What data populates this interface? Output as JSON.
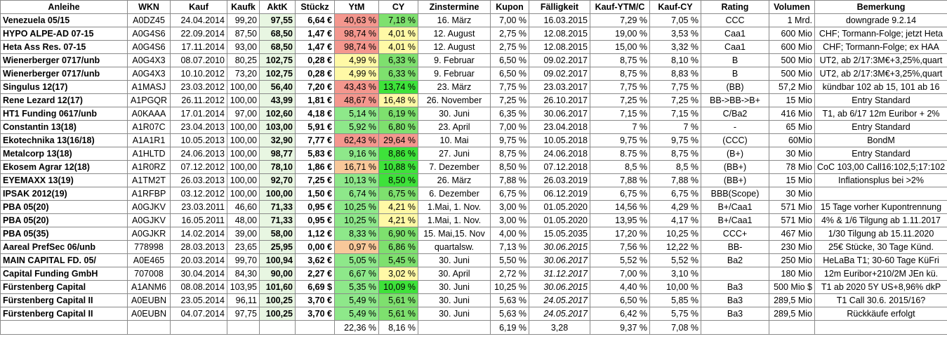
{
  "headers": [
    "Anleihe",
    "WKN",
    "Kauf",
    "Kaufk",
    "AktK",
    "Stückz",
    "YtM",
    "CY",
    "Zinstermine",
    "Kupon",
    "Fälligkeit",
    "Kauf-YTM/C",
    "Kauf-CY",
    "Rating",
    "Volumen",
    "Bemerkung"
  ],
  "colors": {
    "ytm_red": "#f4978e",
    "ytm_orange": "#f8c89a",
    "ytm_yellow": "#fff9a6",
    "ytm_green": "#8ee88a",
    "cy_red": "#f4978e",
    "cy_yellow": "#fff9a6",
    "cy_green": "#7ee06e",
    "cy_bright_green": "#3ee23a",
    "aktk_bg": "#e8f6e2"
  },
  "rows": [
    {
      "name": "Venezuela 05/15",
      "wkn": "A0DZ45",
      "kauf": "24.04.2014",
      "kaufk": "99,20",
      "aktk": "97,55",
      "stueckz": "6,64 €",
      "ytm": "40,63 %",
      "ytm_color": "#f4978e",
      "cy": "7,18 %",
      "cy_color": "#7ee06e",
      "zins": "16. März",
      "kupon": "7,00 %",
      "faellig": "16.03.2015",
      "faellig_italic": false,
      "kytm": "7,29 %",
      "kcy": "7,05 %",
      "rating": "CCC",
      "volumen": "1 Mrd.",
      "bemerkung": "downgrade 9.2.14"
    },
    {
      "name": "HYPO ALPE-AD 07-15",
      "wkn": "A0G4S6",
      "kauf": "22.09.2014",
      "kaufk": "87,50",
      "aktk": "68,50",
      "stueckz": "1,47 €",
      "ytm": "98,74 %",
      "ytm_color": "#f4978e",
      "cy": "4,01 %",
      "cy_color": "#fff9a6",
      "zins": "12. August",
      "kupon": "2,75 %",
      "faellig": "12.08.2015",
      "faellig_italic": false,
      "kytm": "19,00 %",
      "kcy": "3,53 %",
      "rating": "Caa1",
      "volumen": "600 Mio",
      "bemerkung": "CHF; Tormann-Folge; jetzt Heta"
    },
    {
      "name": "Heta Ass Res. 07-15",
      "wkn": "A0G4S6",
      "kauf": "17.11.2014",
      "kaufk": "93,00",
      "aktk": "68,50",
      "stueckz": "1,47 €",
      "ytm": "98,74 %",
      "ytm_color": "#f4978e",
      "cy": "4,01 %",
      "cy_color": "#fff9a6",
      "zins": "12. August",
      "kupon": "2,75 %",
      "faellig": "12.08.2015",
      "faellig_italic": false,
      "kytm": "15,00 %",
      "kcy": "3,32 %",
      "rating": "Caa1",
      "volumen": "600 Mio",
      "bemerkung": "CHF; Tormann-Folge; ex HAA"
    },
    {
      "name": "Wienerberger 0717/unb",
      "wkn": "A0G4X3",
      "kauf": "08.07.2010",
      "kaufk": "80,25",
      "aktk": "102,75",
      "stueckz": "0,28 €",
      "ytm": "4,99 %",
      "ytm_color": "#fff9a6",
      "cy": "6,33 %",
      "cy_color": "#7ee06e",
      "zins": "9. Februar",
      "kupon": "6,50 %",
      "faellig": "09.02.2017",
      "faellig_italic": false,
      "kytm": "8,75 %",
      "kcy": "8,10 %",
      "rating": "B",
      "volumen": "500 Mio",
      "bemerkung": "UT2, ab 2/17:3M€+3,25%,quart"
    },
    {
      "name": "Wienerberger 0717/unb",
      "wkn": "A0G4X3",
      "kauf": "10.10.2012",
      "kaufk": "73,20",
      "aktk": "102,75",
      "stueckz": "0,28 €",
      "ytm": "4,99 %",
      "ytm_color": "#fff9a6",
      "cy": "6,33 %",
      "cy_color": "#7ee06e",
      "zins": "9. Februar",
      "kupon": "6,50 %",
      "faellig": "09.02.2017",
      "faellig_italic": false,
      "kytm": "8,75 %",
      "kcy": "8,83 %",
      "rating": "B",
      "volumen": "500 Mio",
      "bemerkung": "UT2, ab 2/17:3M€+3,25%,quart"
    },
    {
      "name": "Singulus 12(17)",
      "wkn": "A1MASJ",
      "kauf": "23.03.2012",
      "kaufk": "100,00",
      "aktk": "56,40",
      "stueckz": "7,20 €",
      "ytm": "43,43 %",
      "ytm_color": "#f4978e",
      "cy": "13,74 %",
      "cy_color": "#3ee23a",
      "zins": "23. März",
      "kupon": "7,75 %",
      "faellig": "23.03.2017",
      "faellig_italic": false,
      "kytm": "7,75 %",
      "kcy": "7,75 %",
      "rating": "(BB)",
      "volumen": "57,2 Mio",
      "bemerkung": "kündbar 102 ab 15,  101 ab 16"
    },
    {
      "name": "Rene Lezard 12(17)",
      "wkn": "A1PGQR",
      "kauf": "26.11.2012",
      "kaufk": "100,00",
      "aktk": "43,99",
      "stueckz": "1,81 €",
      "ytm": "48,67 %",
      "ytm_color": "#f4978e",
      "cy": "16,48 %",
      "cy_color": "#fff9a6",
      "zins": "26. November",
      "kupon": "7,25 %",
      "faellig": "26.10.2017",
      "faellig_italic": false,
      "kytm": "7,25 %",
      "kcy": "7,25 %",
      "rating": "BB->BB->B+",
      "volumen": "15 Mio",
      "bemerkung": "Entry Standard"
    },
    {
      "name": "HT1 Funding 0617/unb",
      "wkn": "A0KAAA",
      "kauf": "17.01.2014",
      "kaufk": "97,00",
      "aktk": "102,60",
      "stueckz": "4,18 €",
      "ytm": "5,14 %",
      "ytm_color": "#8ee88a",
      "cy": "6,19 %",
      "cy_color": "#7ee06e",
      "zins": "30. Juni",
      "kupon": "6,35 %",
      "faellig": "30.06.2017",
      "faellig_italic": false,
      "kytm": "7,15 %",
      "kcy": "7,15 %",
      "rating": "C/Ba2",
      "volumen": "416 Mio",
      "bemerkung": "T1, ab 6/17 12m Euribor + 2%"
    },
    {
      "name": "Constantin 13(18)",
      "wkn": "A1R07C",
      "kauf": "23.04.2013",
      "kaufk": "100,00",
      "aktk": "103,00",
      "stueckz": "5,91 €",
      "ytm": "5,92 %",
      "ytm_color": "#8ee88a",
      "cy": "6,80 %",
      "cy_color": "#7ee06e",
      "zins": "23. April",
      "kupon": "7,00 %",
      "faellig": "23.04.2018",
      "faellig_italic": false,
      "kytm": "7 %",
      "kcy": "7 %",
      "rating": "-",
      "volumen": "65 Mio",
      "bemerkung": "Entry Standard"
    },
    {
      "name": "Ekotechnika 13(16/18)",
      "wkn": "A1A1R1",
      "kauf": "10.05.2013",
      "kaufk": "100,00",
      "aktk": "32,90",
      "stueckz": "7,77 €",
      "ytm": "62,43 %",
      "ytm_color": "#f4978e",
      "cy": "29,64 %",
      "cy_color": "#f4978e",
      "zins": "10. Mai",
      "kupon": "9,75 %",
      "faellig": "10.05.2018",
      "faellig_italic": false,
      "kytm": "9,75 %",
      "kcy": "9,75 %",
      "rating": "(CCC)",
      "volumen": "60Mio",
      "bemerkung": "BondM"
    },
    {
      "name": "Metalcorp 13(18)",
      "wkn": "A1HLTD",
      "kauf": "24.06.2013",
      "kaufk": "100,00",
      "aktk": "98,77",
      "stueckz": "5,83 €",
      "ytm": "9,16 %",
      "ytm_color": "#8ee88a",
      "cy": "8,86 %",
      "cy_color": "#3ee23a",
      "zins": "27. Juni",
      "kupon": "8,75 %",
      "faellig": "24.06.2018",
      "faellig_italic": false,
      "kytm": "8.75 %",
      "kcy": "8,75 %",
      "rating": "(B+)",
      "volumen": "30 Mio",
      "bemerkung": "Entry Standard"
    },
    {
      "name": "Ekosem Agrar 12(18)",
      "wkn": "A1R0RZ",
      "kauf": "07.12.2012",
      "kaufk": "100,00",
      "aktk": "78,10",
      "stueckz": "1,86 €",
      "ytm": "16,71 %",
      "ytm_color": "#f8c89a",
      "cy": "10,88 %",
      "cy_color": "#3ee23a",
      "zins": "7. Dezember",
      "kupon": "8,50 %",
      "faellig": "07.12.2018",
      "faellig_italic": false,
      "kytm": "8,5 %",
      "kcy": "8,5 %",
      "rating": "(BB+)",
      "volumen": "78 Mio",
      "bemerkung": "CoC 103,00 Call16:102,5;17:102"
    },
    {
      "name": "EYEMAXX 13(19)",
      "wkn": "A1TM2T",
      "kauf": "26.03.2013",
      "kaufk": "100,00",
      "aktk": "92,70",
      "stueckz": "7,25 €",
      "ytm": "10,13 %",
      "ytm_color": "#8ee88a",
      "cy": "8,50 %",
      "cy_color": "#3ee23a",
      "zins": "26. März",
      "kupon": "7,88 %",
      "faellig": "26.03.2019",
      "faellig_italic": false,
      "kytm": "7,88 %",
      "kcy": "7,88 %",
      "rating": "(BB+)",
      "volumen": "15 Mio",
      "bemerkung": "Inflationsplus bei >2%"
    },
    {
      "name": "IPSAK 2012(19)",
      "wkn": "A1RFBP",
      "kauf": "03.12.2012",
      "kaufk": "100,00",
      "aktk": "100,00",
      "stueckz": "1,50 €",
      "ytm": "6,74 %",
      "ytm_color": "#8ee88a",
      "cy": "6,75 %",
      "cy_color": "#7ee06e",
      "zins": "6. Dezember",
      "kupon": "6,75 %",
      "faellig": "06.12.2019",
      "faellig_italic": false,
      "kytm": "6,75 %",
      "kcy": "6,75 %",
      "rating": "BBB(Scope)",
      "volumen": "30 Mio",
      "bemerkung": ""
    },
    {
      "name": "PBA 05(20)",
      "wkn": "A0GJKV",
      "kauf": "23.03.2011",
      "kaufk": "46,60",
      "aktk": "71,33",
      "stueckz": "0,95 €",
      "ytm": "10,25 %",
      "ytm_color": "#8ee88a",
      "cy": "4,21 %",
      "cy_color": "#fff9a6",
      "zins": "1.Mai, 1. Nov.",
      "kupon": "3,00 %",
      "faellig": "01.05.2020",
      "faellig_italic": false,
      "kytm": "14,56 %",
      "kcy": "4,29 %",
      "rating": "B+/Caa1",
      "volumen": "571 Mio",
      "bemerkung": "15 Tage vorher Kupontrennung"
    },
    {
      "name": "PBA 05(20)",
      "wkn": "A0GJKV",
      "kauf": "16.05.2011",
      "kaufk": "48,00",
      "aktk": "71,33",
      "stueckz": "0,95 €",
      "ytm": "10,25 %",
      "ytm_color": "#8ee88a",
      "cy": "4,21 %",
      "cy_color": "#fff9a6",
      "zins": "1.Mai, 1. Nov.",
      "kupon": "3,00 %",
      "faellig": "01.05.2020",
      "faellig_italic": false,
      "kytm": "13,95 %",
      "kcy": "4,17 %",
      "rating": "B+/Caa1",
      "volumen": "571 Mio",
      "bemerkung": "4% & 1/6 Tilgung ab 1.11.2017"
    },
    {
      "name": "PBA 05(35)",
      "wkn": "A0GJKR",
      "kauf": "14.02.2014",
      "kaufk": "39,00",
      "aktk": "58,00",
      "stueckz": "1,12 €",
      "ytm": "8,33 %",
      "ytm_color": "#8ee88a",
      "cy": "6,90 %",
      "cy_color": "#7ee06e",
      "zins": "15. Mai,15. Nov",
      "kupon": "4,00 %",
      "faellig": "15.05.2035",
      "faellig_italic": false,
      "kytm": "17,20 %",
      "kcy": "10,25 %",
      "rating": "CCC+",
      "volumen": "467 Mio",
      "bemerkung": "1/30 Tilgung ab 15.11.2020"
    },
    {
      "name": "Aareal PrefSec 06/unb",
      "wkn": "778998",
      "kauf": "28.03.2013",
      "kaufk": "23,65",
      "aktk": "25,95",
      "stueckz": "0,00 €",
      "ytm": "0,97 %",
      "ytm_color": "#f8c89a",
      "cy": "6,86 %",
      "cy_color": "#7ee06e",
      "zins": "quartalsw.",
      "kupon": "7,13 %",
      "faellig": "30.06.2015",
      "faellig_italic": true,
      "kytm": "7,56 %",
      "kcy": "12,22 %",
      "rating": "BB-",
      "volumen": "230 Mio",
      "bemerkung": "25€ Stücke, 30 Tage Künd."
    },
    {
      "name": "MAIN CAPITAL FD. 05/",
      "wkn": "A0E465",
      "kauf": "20.03.2014",
      "kaufk": "99,70",
      "aktk": "100,94",
      "stueckz": "3,62 €",
      "ytm": "5,05 %",
      "ytm_color": "#8ee88a",
      "cy": "5,45 %",
      "cy_color": "#7ee06e",
      "zins": "30. Juni",
      "kupon": "5,50 %",
      "faellig": "30.06.2017",
      "faellig_italic": true,
      "kytm": "5,52 %",
      "kcy": "5,52 %",
      "rating": "Ba2",
      "volumen": "250 Mio",
      "bemerkung": "HeLaBa T1; 30-60 Tage KüFri"
    },
    {
      "name": "Capital Funding GmbH",
      "wkn": "707008",
      "kauf": "30.04.2014",
      "kaufk": "84,30",
      "aktk": "90,00",
      "stueckz": "2,27 €",
      "ytm": "6,67 %",
      "ytm_color": "#8ee88a",
      "cy": "3,02 %",
      "cy_color": "#fff9a6",
      "zins": "30. April",
      "kupon": "2,72 %",
      "faellig": "31.12.2017",
      "faellig_italic": true,
      "kytm": "7,00 %",
      "kcy": "3,10 %",
      "rating": "",
      "volumen": "180 Mio",
      "bemerkung": "12m Euribor+210/2M JEn kü."
    },
    {
      "name": "Fürstenberg Capital",
      "wkn": "A1ANM6",
      "kauf": "08.08.2014",
      "kaufk": "103,95",
      "aktk": "101,60",
      "stueckz": "6,69 $",
      "ytm": "5,35 %",
      "ytm_color": "#8ee88a",
      "cy": "10,09 %",
      "cy_color": "#3ee23a",
      "zins": "30. Juni",
      "kupon": "10,25 %",
      "faellig": "30.06.2015",
      "faellig_italic": true,
      "kytm": "4,40 %",
      "kcy": "10,00 %",
      "rating": "Ba3",
      "volumen": "500 Mio $",
      "bemerkung": "T1 ab 2020 5Y US+8,96% dkP"
    },
    {
      "name": "Fürstenberg Capital II",
      "wkn": "A0EUBN",
      "kauf": "23.05.2014",
      "kaufk": "96,11",
      "aktk": "100,25",
      "stueckz": "3,70 €",
      "ytm": "5,49 %",
      "ytm_color": "#8ee88a",
      "cy": "5,61 %",
      "cy_color": "#7ee06e",
      "zins": "30. Juni",
      "kupon": "5,63 %",
      "faellig": "24.05.2017",
      "faellig_italic": true,
      "kytm": "6,50 %",
      "kcy": "5,85 %",
      "rating": "Ba3",
      "volumen": "289,5 Mio",
      "bemerkung": "T1 Call 30.6. 2015/16?"
    },
    {
      "name": "Fürstenberg Capital II",
      "wkn": "A0EUBN",
      "kauf": "04.07.2014",
      "kaufk": "97,75",
      "aktk": "100,25",
      "stueckz": "3,70 €",
      "ytm": "5,49 %",
      "ytm_color": "#8ee88a",
      "cy": "5,61 %",
      "cy_color": "#7ee06e",
      "zins": "30. Juni",
      "kupon": "5,63 %",
      "faellig": "24.05.2017",
      "faellig_italic": true,
      "kytm": "6,42 %",
      "kcy": "5,75 %",
      "rating": "Ba3",
      "volumen": "289,5 Mio",
      "bemerkung": "Rückkäufe erfolgt"
    }
  ],
  "totals": {
    "ytm": "22,36 %",
    "cy": "8,16 %",
    "kupon": "6,19 %",
    "faellig": "3,28",
    "kytm": "9,37 %",
    "kcy": "7,08 %"
  }
}
